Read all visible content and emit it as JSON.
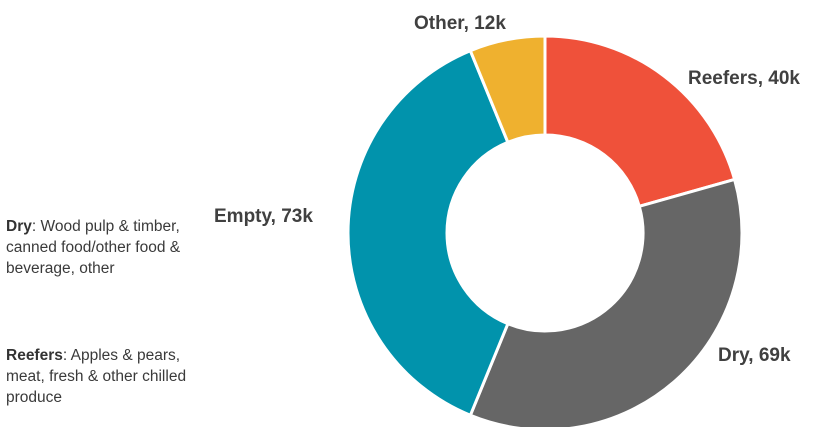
{
  "chart_data": {
    "type": "pie",
    "variant": "donut",
    "title": "",
    "categories": [
      "Reefers",
      "Dry",
      "Empty",
      "Other"
    ],
    "values": [
      40,
      69,
      73,
      12
    ],
    "unit": "k",
    "labels": [
      "Reefers, 40k",
      "Dry, 69k",
      "Empty, 73k",
      "Other, 12k"
    ],
    "colors": [
      "#EF513A",
      "#666666",
      "#0193AC",
      "#EFB12F"
    ],
    "start_angle_deg": 0,
    "direction": "clockwise",
    "legend": "none"
  },
  "notes": {
    "dry": {
      "term": "Dry",
      "text": ": Wood pulp & timber, canned food/other food & beverage, other"
    },
    "reefers": {
      "term": "Reefers",
      "text": ": Apples & pears, meat, fresh & other chilled produce"
    }
  }
}
